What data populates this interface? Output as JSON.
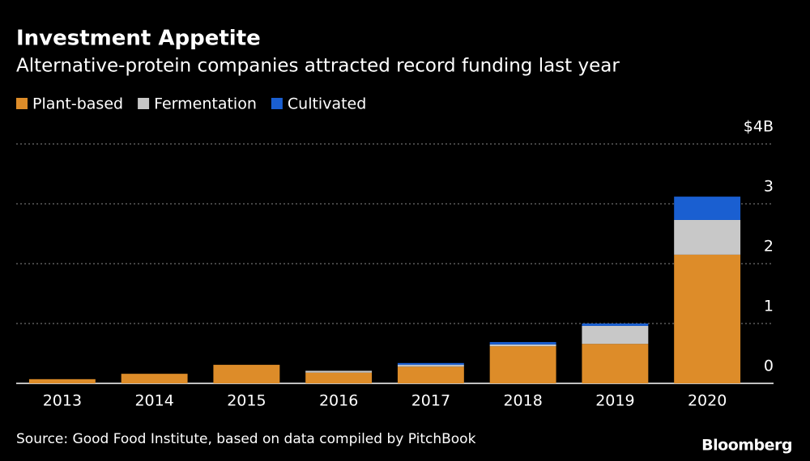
{
  "chart_data": {
    "type": "stacked_bar",
    "title": "Investment Appetite",
    "subtitle": "Alternative-protein companies attracted record funding last year",
    "categories": [
      "2013",
      "2014",
      "2015",
      "2016",
      "2017",
      "2018",
      "2019",
      "2020"
    ],
    "series": [
      {
        "name": "Plant-based",
        "color": "#dd8c29",
        "values": [
          0.07,
          0.16,
          0.31,
          0.18,
          0.28,
          0.62,
          0.66,
          2.15
        ]
      },
      {
        "name": "Fermentation",
        "color": "#c8c8c8",
        "values": [
          0,
          0,
          0,
          0.03,
          0.03,
          0.03,
          0.3,
          0.58
        ]
      },
      {
        "name": "Cultivated",
        "color": "#1a5fd1",
        "values": [
          0,
          0,
          0,
          0,
          0.03,
          0.04,
          0.04,
          0.39
        ]
      }
    ],
    "ylim": [
      0,
      4
    ],
    "yticks": [
      0,
      1,
      2,
      3,
      {
        "value": 4,
        "label": "$4B"
      }
    ],
    "grid": true,
    "source": "Source: Good Food Institute, based on data compiled by PitchBook",
    "brand": "Bloomberg"
  }
}
